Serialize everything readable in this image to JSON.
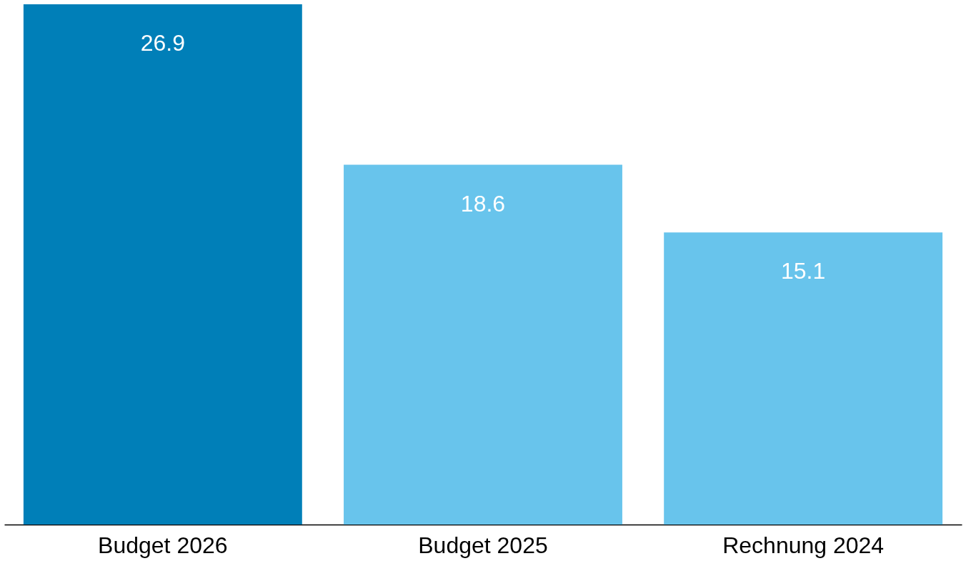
{
  "chart_data": {
    "type": "bar",
    "categories": [
      "Budget 2026",
      "Budget 2025",
      "Rechnung 2024"
    ],
    "values": [
      26.9,
      18.6,
      15.1
    ],
    "colors": [
      "#007fb8",
      "#68c4ec",
      "#68c4ec"
    ],
    "data_labels": true,
    "grid": false,
    "tick_labels": "x"
  }
}
